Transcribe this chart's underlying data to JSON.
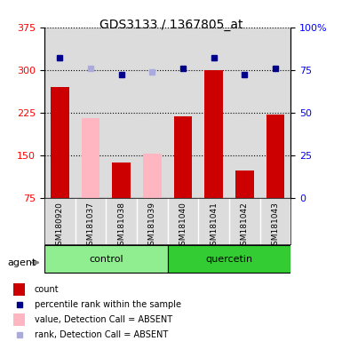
{
  "title": "GDS3133 / 1367805_at",
  "samples": [
    "GSM180920",
    "GSM181037",
    "GSM181038",
    "GSM181039",
    "GSM181040",
    "GSM181041",
    "GSM181042",
    "GSM181043"
  ],
  "bar_values": [
    270,
    215,
    137,
    153,
    218,
    300,
    123,
    222
  ],
  "bar_absent": [
    false,
    true,
    false,
    true,
    false,
    false,
    false,
    false
  ],
  "rank_values": [
    82,
    76,
    72,
    74,
    76,
    82,
    72,
    76
  ],
  "rank_absent": [
    false,
    true,
    false,
    true,
    false,
    false,
    false,
    false
  ],
  "groups": [
    {
      "label": "control",
      "start": 0,
      "end": 4,
      "color": "#90EE90"
    },
    {
      "label": "quercetin",
      "start": 4,
      "end": 8,
      "color": "#33CC33"
    }
  ],
  "agent_label": "agent",
  "ylim": [
    75,
    375
  ],
  "yticks": [
    75,
    150,
    225,
    300,
    375
  ],
  "y2lim": [
    0,
    100
  ],
  "y2ticks": [
    0,
    25,
    50,
    75,
    100
  ],
  "bar_color_present": "#CC0000",
  "bar_color_absent": "#FFB6C1",
  "rank_color_present": "#00008B",
  "rank_color_absent": "#AAAADD",
  "background_color": "#DCDCDC",
  "legend": [
    {
      "label": "count",
      "color": "#CC0000",
      "type": "bar"
    },
    {
      "label": "percentile rank within the sample",
      "color": "#00008B",
      "type": "square"
    },
    {
      "label": "value, Detection Call = ABSENT",
      "color": "#FFB6C1",
      "type": "bar"
    },
    {
      "label": "rank, Detection Call = ABSENT",
      "color": "#AAAADD",
      "type": "square"
    }
  ]
}
